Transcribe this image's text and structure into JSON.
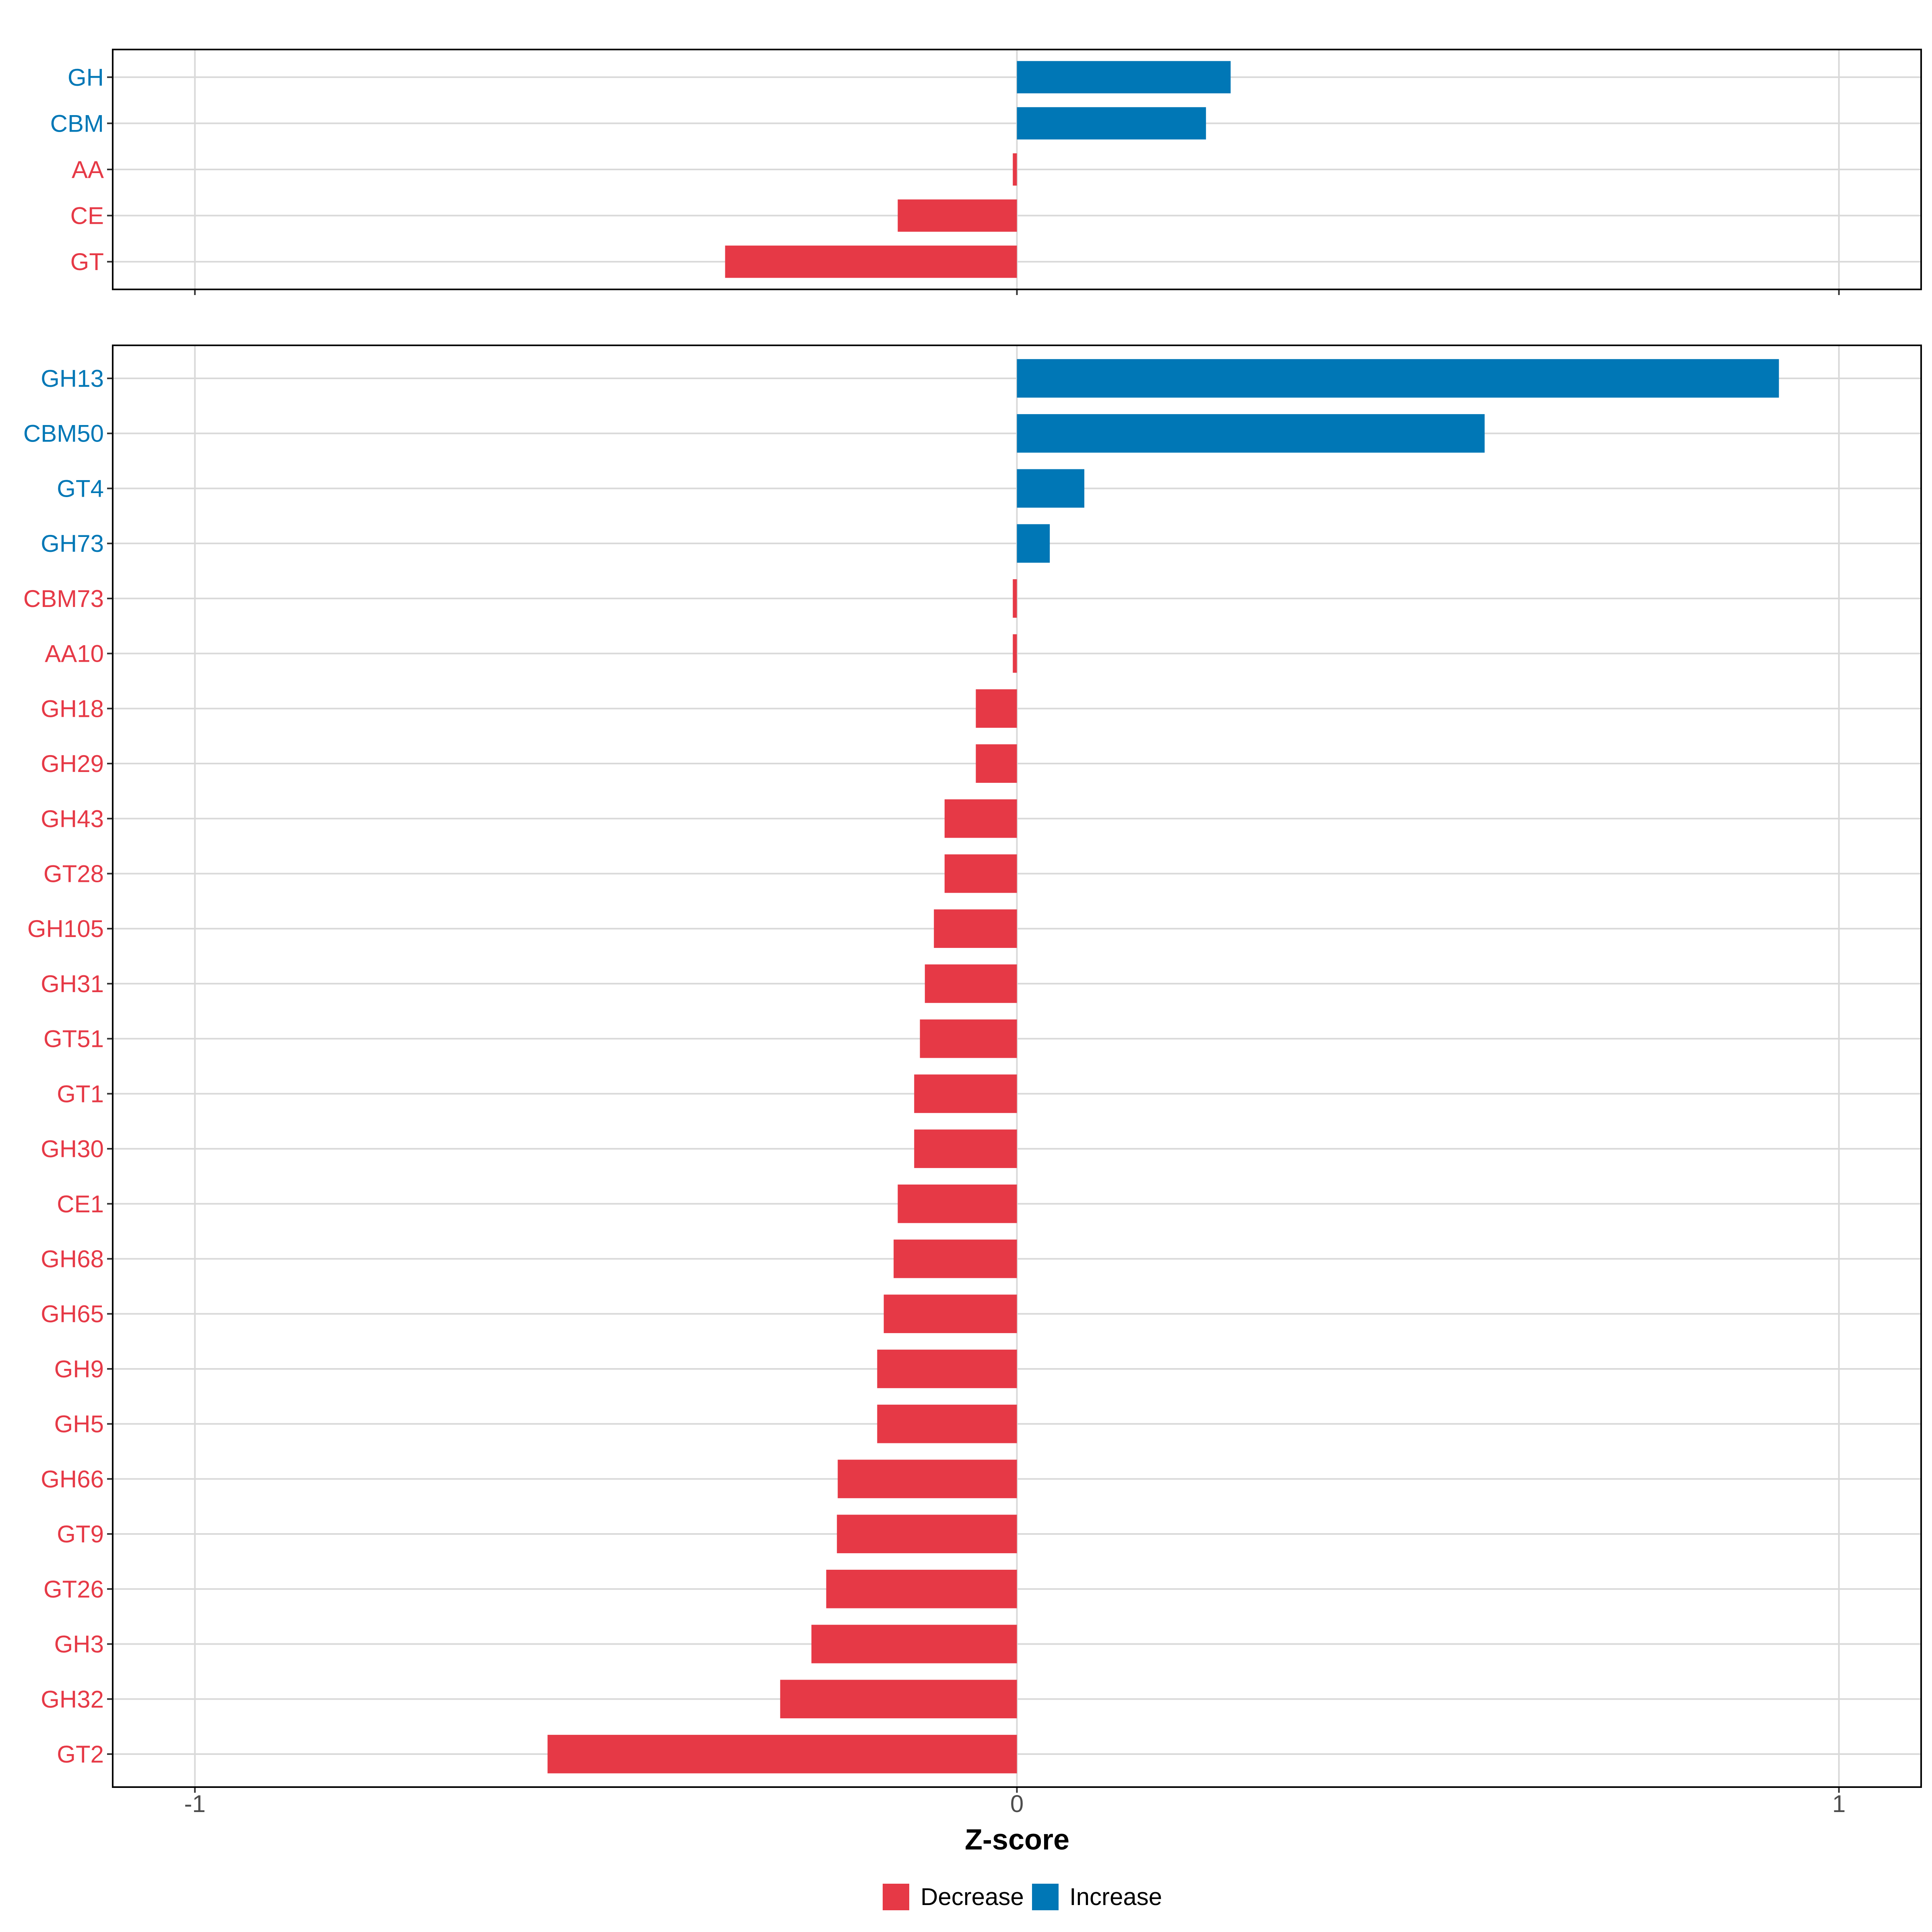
{
  "chart_data": [
    {
      "type": "bar",
      "orientation": "horizontal",
      "panel": "top",
      "categories": [
        "GH",
        "CBM",
        "AA",
        "CE",
        "GT"
      ],
      "values": [
        0.26,
        0.23,
        -0.005,
        -0.145,
        -0.355
      ],
      "xlim": [
        -1.1,
        1.1
      ],
      "xticks": [
        -1,
        0,
        1
      ],
      "grid": true
    },
    {
      "type": "bar",
      "orientation": "horizontal",
      "panel": "bottom",
      "categories": [
        "GH13",
        "CBM50",
        "GT4",
        "GH73",
        "CBM73",
        "AA10",
        "GH18",
        "GH29",
        "GH43",
        "GT28",
        "GH105",
        "GH31",
        "GT51",
        "GT1",
        "GH30",
        "CE1",
        "GH68",
        "GH65",
        "GH9",
        "GH5",
        "GH66",
        "GT9",
        "GT26",
        "GH3",
        "GH32",
        "GT2"
      ],
      "values": [
        0.927,
        0.569,
        0.082,
        0.04,
        -0.005,
        -0.005,
        -0.05,
        -0.05,
        -0.088,
        -0.088,
        -0.101,
        -0.112,
        -0.118,
        -0.125,
        -0.125,
        -0.145,
        -0.15,
        -0.162,
        -0.17,
        -0.17,
        -0.218,
        -0.219,
        -0.232,
        -0.25,
        -0.288,
        -0.571
      ],
      "xlim": [
        -1.1,
        1.1
      ],
      "xticks": [
        -1,
        0,
        1
      ],
      "xtick_labels": [
        "-1",
        "0",
        "1"
      ],
      "xlabel": "Z-score",
      "grid": true
    }
  ],
  "legend": {
    "position": "bottom",
    "items": [
      {
        "label": "Decrease",
        "color": "#E63946"
      },
      {
        "label": "Increase",
        "color": "#0077B6"
      }
    ]
  },
  "colors": {
    "increase": "#0077B6",
    "decrease": "#E63946",
    "grid": "#D9D9D9",
    "axis_text": "#4d4d4d"
  }
}
